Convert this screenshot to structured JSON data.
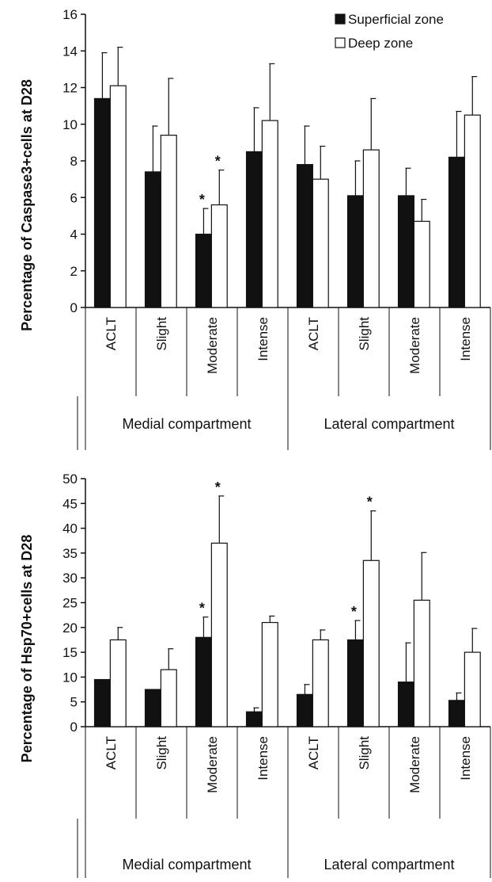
{
  "chart_data": [
    {
      "type": "bar",
      "ylabel": "Percentage of Caspase3+cells at D28",
      "ylim": [
        0,
        16
      ],
      "ytick_step": 2,
      "categories": [
        "ACLT",
        "Slight",
        "Moderate",
        "Intense",
        "ACLT",
        "Slight",
        "Moderate",
        "Intense"
      ],
      "groups": [
        "Medial compartment",
        "Lateral compartment"
      ],
      "series": [
        {
          "name": "Superficial zone",
          "fill": "#111111",
          "values": [
            11.4,
            7.4,
            4.0,
            8.5,
            7.8,
            6.1,
            6.1,
            8.2
          ],
          "errors": [
            2.5,
            2.5,
            1.4,
            2.4,
            2.1,
            1.9,
            1.5,
            2.5
          ],
          "significant": [
            false,
            false,
            true,
            false,
            false,
            false,
            false,
            false
          ]
        },
        {
          "name": "Deep zone",
          "fill": "#ffffff",
          "values": [
            12.1,
            9.4,
            5.6,
            10.2,
            7.0,
            8.6,
            4.7,
            10.5
          ],
          "errors": [
            2.1,
            3.1,
            1.9,
            3.1,
            1.8,
            2.8,
            1.2,
            2.1
          ],
          "significant": [
            false,
            false,
            true,
            false,
            false,
            false,
            false,
            false
          ]
        }
      ],
      "legend_position": "top-right",
      "significance_marker": "*"
    },
    {
      "type": "bar",
      "ylabel": "Percentage of Hsp70+cells at D28",
      "ylim": [
        0,
        50
      ],
      "ytick_step": 5,
      "categories": [
        "ACLT",
        "Slight",
        "Moderate",
        "Intense",
        "ACLT",
        "Slight",
        "Moderate",
        "Intense"
      ],
      "groups": [
        "Medial compartment",
        "Lateral compartment"
      ],
      "series": [
        {
          "name": "Superficial zone",
          "fill": "#111111",
          "values": [
            9.5,
            7.5,
            18.0,
            3.0,
            6.5,
            17.5,
            9.0,
            5.3
          ],
          "errors": [
            0.0,
            0.0,
            4.1,
            0.8,
            2.0,
            3.9,
            7.9,
            1.5
          ],
          "significant": [
            false,
            false,
            true,
            false,
            false,
            true,
            false,
            false
          ]
        },
        {
          "name": "Deep zone",
          "fill": "#ffffff",
          "values": [
            17.5,
            11.5,
            37.0,
            21.0,
            17.5,
            33.5,
            25.5,
            15.0
          ],
          "errors": [
            2.5,
            4.2,
            9.5,
            1.3,
            2.0,
            10.0,
            9.6,
            4.8
          ],
          "significant": [
            false,
            false,
            true,
            false,
            false,
            true,
            false,
            false
          ]
        }
      ],
      "significance_marker": "*"
    }
  ]
}
